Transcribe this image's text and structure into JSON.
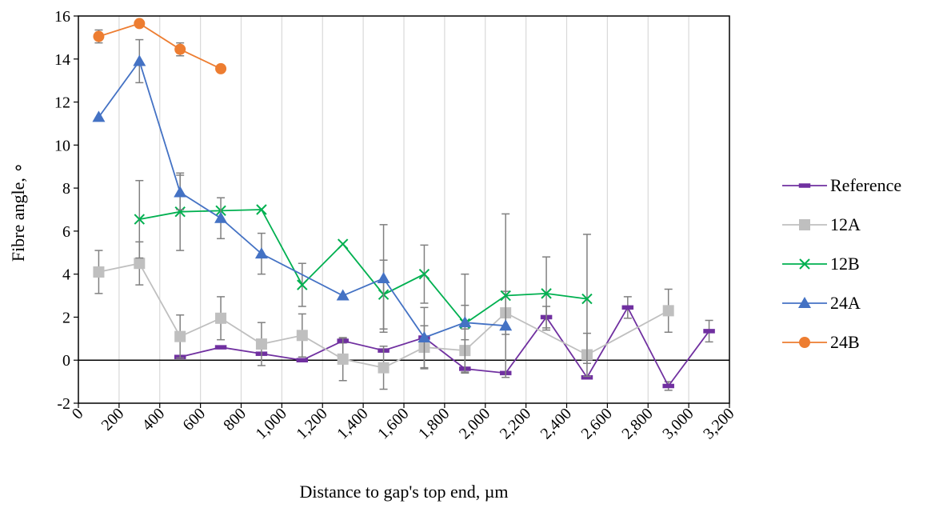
{
  "chart_data": {
    "type": "line",
    "title": "",
    "xlabel": "Distance to gap's top end, µm",
    "ylabel": "Fibre angle, ∘",
    "xlim": [
      0,
      3200
    ],
    "ylim": [
      -2,
      16
    ],
    "x_ticks": [
      0,
      200,
      400,
      600,
      800,
      1000,
      1200,
      1400,
      1600,
      1800,
      2000,
      2200,
      2400,
      2600,
      2800,
      3000,
      3200
    ],
    "x_tick_labels": [
      "0",
      "200",
      "400",
      "600",
      "800",
      "1,000",
      "1,200",
      "1,400",
      "1,600",
      "1,800",
      "2,000",
      "2,200",
      "2,400",
      "2,600",
      "2,800",
      "3,000",
      "3,200"
    ],
    "y_ticks": [
      -2,
      0,
      2,
      4,
      6,
      8,
      10,
      12,
      14,
      16
    ],
    "y_tick_labels": [
      "-2",
      "0",
      "2",
      "4",
      "6",
      "8",
      "10",
      "12",
      "14",
      "16"
    ],
    "vertical_grid": true,
    "horizontal_grid": false,
    "zero_line": true,
    "legend_position": "right",
    "series": [
      {
        "name": "Reference",
        "color": "#7030A0",
        "marker": "dash",
        "x": [
          500,
          700,
          900,
          1100,
          1300,
          1500,
          1700,
          1900,
          2100,
          2300,
          2500,
          2700,
          2900,
          3100
        ],
        "y": [
          0.15,
          0.6,
          0.3,
          0.0,
          0.9,
          0.45,
          1.05,
          -0.4,
          -0.6,
          2.0,
          -0.8,
          2.45,
          -1.2,
          1.35
        ],
        "error": [
          null,
          null,
          null,
          null,
          0.1,
          null,
          null,
          null,
          null,
          0.5,
          null,
          0.5,
          0.2,
          0.5
        ]
      },
      {
        "name": "12A",
        "color": "#BFBFBF",
        "marker": "square",
        "x": [
          100,
          300,
          500,
          700,
          900,
          1100,
          1300,
          1500,
          1700,
          1900,
          2100,
          2500,
          2900
        ],
        "y": [
          4.1,
          4.5,
          1.1,
          1.95,
          0.75,
          1.15,
          0.05,
          -0.35,
          0.6,
          0.45,
          2.2,
          0.25,
          2.3
        ],
        "error": [
          1.0,
          1.0,
          1.0,
          1.0,
          1.0,
          1.0,
          1.0,
          1.0,
          1.0,
          1.0,
          1.0,
          1.0,
          1.0
        ]
      },
      {
        "name": "12B",
        "color": "#00B050",
        "marker": "x",
        "x": [
          300,
          500,
          700,
          900,
          1100,
          1300,
          1500,
          1700,
          1900,
          2100,
          2300,
          2500
        ],
        "y": [
          6.55,
          6.9,
          6.95,
          7.0,
          3.5,
          5.4,
          3.05,
          4.0,
          1.7,
          3.0,
          3.1,
          2.85
        ],
        "error": [
          1.8,
          1.8,
          null,
          null,
          1.0,
          null,
          1.6,
          1.35,
          2.3,
          3.8,
          1.7,
          3.0
        ]
      },
      {
        "name": "24A",
        "color": "#4472C4",
        "marker": "triangle",
        "x": [
          100,
          300,
          500,
          700,
          900,
          1300,
          1500,
          1700,
          1900,
          2100
        ],
        "y": [
          11.3,
          13.9,
          7.8,
          6.6,
          4.95,
          3.0,
          3.8,
          1.05,
          1.75,
          1.6
        ],
        "error": [
          null,
          1.0,
          0.8,
          0.95,
          0.95,
          null,
          2.5,
          1.4,
          0.8,
          null
        ]
      },
      {
        "name": "24B",
        "color": "#ED7D31",
        "marker": "circle",
        "x": [
          100,
          300,
          500,
          700
        ],
        "y": [
          15.05,
          15.65,
          14.45,
          13.55
        ],
        "error": [
          0.3,
          null,
          0.3,
          null
        ]
      }
    ]
  }
}
